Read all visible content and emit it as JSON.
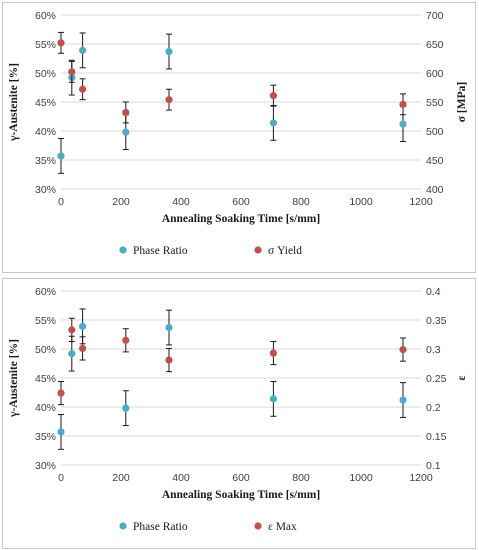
{
  "colors": {
    "phase": "#4bacc6",
    "secondary": "#c0504d",
    "grid": "#d9d9d9"
  },
  "chart_data": [
    {
      "type": "scatter",
      "xlabel": "Annealing Soaking Time [s/mm]",
      "ylabel": "γ-Austenite [%]",
      "y2label": "σ [MPa]",
      "xlim": [
        0,
        1200
      ],
      "ylim": [
        0.3,
        0.6
      ],
      "y2lim": [
        400,
        700
      ],
      "grid": "horizontal",
      "legend_position": "bottom",
      "x_ticks": [
        "0",
        "200",
        "400",
        "600",
        "800",
        "1000",
        "1200"
      ],
      "y_ticks": [
        "30%",
        "35%",
        "40%",
        "45%",
        "50%",
        "55%",
        "60%"
      ],
      "y2_ticks": [
        "400",
        "450",
        "500",
        "550",
        "600",
        "650",
        "700"
      ],
      "series": [
        {
          "name": "Phase Ratio",
          "axis": "left",
          "x": [
            0,
            36,
            72,
            216,
            360,
            708,
            1140
          ],
          "y": [
            0.357,
            0.492,
            0.539,
            0.398,
            0.537,
            0.414,
            0.412
          ],
          "err": [
            0.03,
            0.03,
            0.03,
            0.03,
            0.03,
            0.03,
            0.03
          ]
        },
        {
          "name": "σ Yield",
          "axis": "right",
          "x": [
            0,
            36,
            72,
            216,
            360,
            708,
            1140
          ],
          "y": [
            652,
            602,
            572,
            532,
            554,
            561,
            546
          ],
          "err": [
            18,
            18,
            18,
            18,
            18,
            18,
            18
          ]
        }
      ]
    },
    {
      "type": "scatter",
      "xlabel": "Annealing Soaking Time [s/mm]",
      "ylabel": "γ-Austenite [%]",
      "y2label": "ε",
      "xlim": [
        0,
        1200
      ],
      "ylim": [
        0.3,
        0.6
      ],
      "y2lim": [
        0.1,
        0.4
      ],
      "grid": "horizontal",
      "legend_position": "bottom",
      "x_ticks": [
        "0",
        "200",
        "400",
        "600",
        "800",
        "1000",
        "1200"
      ],
      "y_ticks": [
        "30%",
        "35%",
        "40%",
        "45%",
        "50%",
        "55%",
        "60%"
      ],
      "y2_ticks": [
        "0.1",
        "0.15",
        "0.2",
        "0.25",
        "0.3",
        "0.35",
        "0.4"
      ],
      "series": [
        {
          "name": "Phase Ratio",
          "axis": "left",
          "x": [
            0,
            36,
            72,
            216,
            360,
            708,
            1140
          ],
          "y": [
            0.357,
            0.492,
            0.539,
            0.398,
            0.537,
            0.414,
            0.412
          ],
          "err": [
            0.03,
            0.03,
            0.03,
            0.03,
            0.03,
            0.03,
            0.03
          ]
        },
        {
          "name": "ε Max",
          "axis": "right",
          "x": [
            0,
            36,
            72,
            216,
            360,
            708,
            1140
          ],
          "y": [
            0.224,
            0.333,
            0.301,
            0.315,
            0.281,
            0.293,
            0.299
          ],
          "err": [
            0.02,
            0.02,
            0.02,
            0.02,
            0.02,
            0.02,
            0.02
          ]
        }
      ]
    }
  ]
}
